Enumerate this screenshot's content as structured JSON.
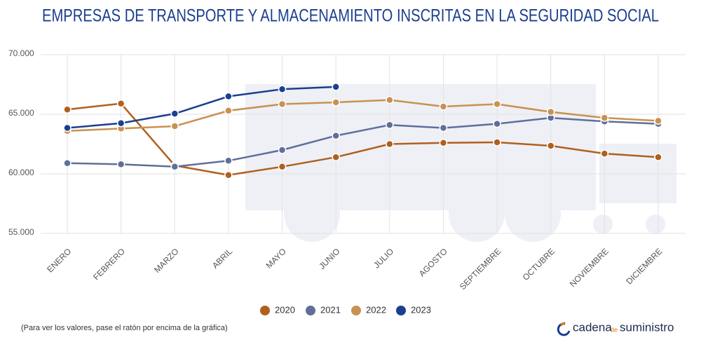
{
  "chart_data": {
    "type": "line",
    "title": "EMPRESAS DE TRANSPORTE Y ALMACENAMIENTO INSCRITAS EN LA SEGURIDAD SOCIAL",
    "categories": [
      "ENERO",
      "FEBRERO",
      "MARZO",
      "ABRIL",
      "MAYO",
      "JUNIO",
      "JULIO",
      "AGOSTO",
      "SEPTIEMBRE",
      "OCTUBRE",
      "NOVIEMBRE",
      "DICIEMBRE"
    ],
    "series": [
      {
        "name": "2020",
        "color": "#b0601e",
        "values": [
          65400,
          65900,
          60700,
          59900,
          60600,
          61400,
          62500,
          62600,
          62650,
          62350,
          61700,
          61400
        ]
      },
      {
        "name": "2021",
        "color": "#5f6f9a",
        "values": [
          60900,
          60800,
          60600,
          61100,
          62000,
          63200,
          64100,
          63850,
          64200,
          64700,
          64400,
          64200
        ]
      },
      {
        "name": "2022",
        "color": "#c99152",
        "values": [
          63600,
          63800,
          64000,
          65300,
          65850,
          66000,
          66200,
          65650,
          65850,
          65200,
          64700,
          64450
        ]
      },
      {
        "name": "2023",
        "color": "#1b3f8f",
        "values": [
          63850,
          64250,
          65050,
          66500,
          67100,
          67300,
          null,
          null,
          null,
          null,
          null,
          null
        ]
      }
    ],
    "ylim": [
      55000,
      70000
    ],
    "yticks": [
      {
        "value": 55000,
        "label": "55.000"
      },
      {
        "value": 60000,
        "label": "60.000"
      },
      {
        "value": 65000,
        "label": "65.000"
      },
      {
        "value": 70000,
        "label": "70.000"
      }
    ],
    "grid": true,
    "legend": "bottom"
  },
  "footnote": "(Para ver los valores, pase el ratón por encima de la gráfica)",
  "logo": {
    "brand": "cadena",
    "connector": "de",
    "tail": "suministro"
  }
}
